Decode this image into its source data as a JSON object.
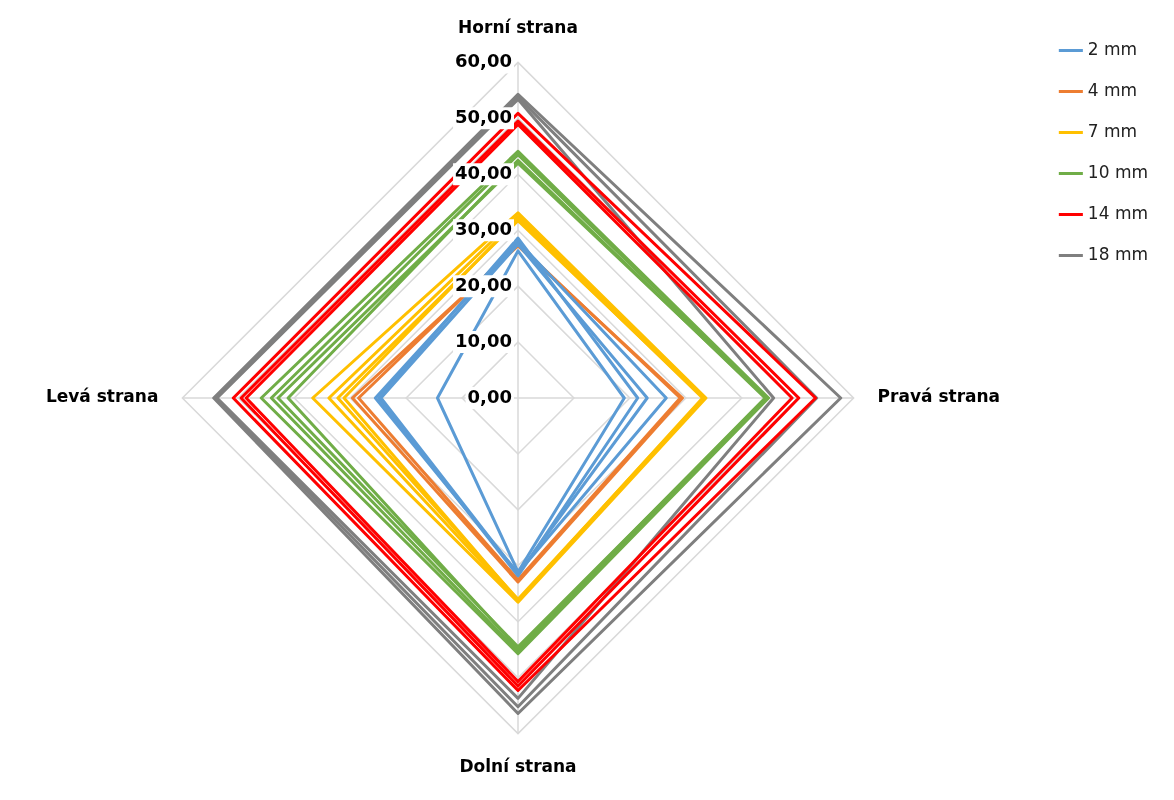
{
  "chart_data": {
    "type": "radar",
    "categories": [
      "Horní strana",
      "Pravá strana",
      "Dolní strana",
      "Levá strana"
    ],
    "ylim": [
      0,
      60
    ],
    "yticks": [
      {
        "value": 0,
        "label": "0,00"
      },
      {
        "value": 10,
        "label": "10,00"
      },
      {
        "value": 20,
        "label": "20,00"
      },
      {
        "value": 30,
        "label": "30,00"
      },
      {
        "value": 40,
        "label": "40,00"
      },
      {
        "value": 50,
        "label": "50,00"
      },
      {
        "value": 60,
        "label": "60,00"
      }
    ],
    "grid": true,
    "legend": "right",
    "marker": "none",
    "line_style": "solid",
    "series": [
      {
        "name": "2 mm",
        "color": "#5b9bd5",
        "values": [
          26.3,
          19.0,
          31.1,
          14.4
        ]
      },
      {
        "color": "#5b9bd5",
        "values": [
          28.6,
          21.4,
          31.8,
          24.9
        ]
      },
      {
        "color": "#5b9bd5",
        "values": [
          27.5,
          23.1,
          31.5,
          24.5
        ]
      },
      {
        "color": "#5b9bd5",
        "values": [
          28.0,
          26.5,
          31.3,
          25.5
        ]
      },
      {
        "name": "4 mm",
        "color": "#ed7d31",
        "values": [
          27.2,
          29.4,
          32.9,
          29.6
        ]
      },
      {
        "color": "#ed7d31",
        "values": [
          27.5,
          29.0,
          32.5,
          28.5
        ]
      },
      {
        "name": "7 mm",
        "color": "#ffc000",
        "values": [
          33.1,
          33.6,
          36.5,
          36.7
        ]
      },
      {
        "color": "#ffc000",
        "values": [
          32.5,
          33.4,
          36.3,
          33.8
        ]
      },
      {
        "color": "#ffc000",
        "values": [
          31.7,
          33.2,
          36.0,
          32.2
        ]
      },
      {
        "color": "#ffc000",
        "values": [
          32.0,
          33.0,
          36.2,
          31.1
        ]
      },
      {
        "name": "10 mm",
        "color": "#70ad47",
        "values": [
          44.1,
          44.8,
          45.7,
          45.9
        ]
      },
      {
        "color": "#70ad47",
        "values": [
          43.5,
          44.6,
          45.3,
          44.1
        ]
      },
      {
        "color": "#70ad47",
        "values": [
          42.0,
          44.4,
          44.5,
          42.9
        ]
      },
      {
        "color": "#70ad47",
        "values": [
          42.5,
          44.2,
          44.8,
          41.1
        ]
      },
      {
        "name": "14 mm",
        "color": "#ff0000",
        "values": [
          50.9,
          53.2,
          52.3,
          50.9
        ]
      },
      {
        "color": "#ff0000",
        "values": [
          49.5,
          50.2,
          51.5,
          49.5
        ]
      },
      {
        "color": "#ff0000",
        "values": [
          48.9,
          49.0,
          50.7,
          48.6
        ]
      },
      {
        "name": "18 mm",
        "color": "#7f7f7f",
        "values": [
          54.3,
          57.7,
          56.4,
          54.4
        ]
      },
      {
        "color": "#7f7f7f",
        "values": [
          53.8,
          53.4,
          55.2,
          54.0
        ]
      },
      {
        "color": "#7f7f7f",
        "values": [
          53.4,
          45.7,
          53.7,
          53.8
        ]
      }
    ]
  }
}
